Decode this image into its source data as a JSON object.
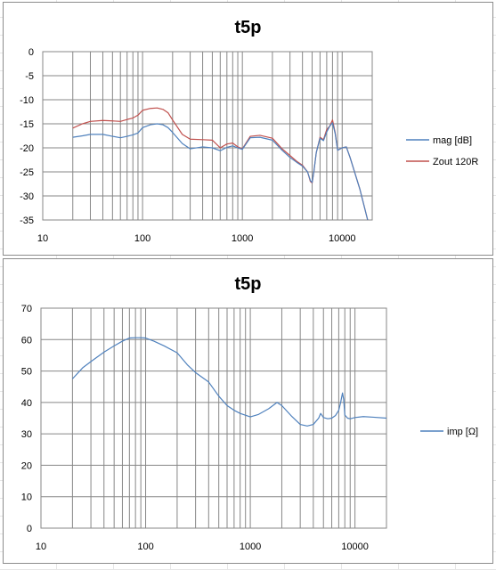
{
  "chart_data": [
    {
      "type": "line",
      "title": "t5p",
      "xscale": "log",
      "xlim": [
        10,
        20000
      ],
      "ylim": [
        -35,
        0
      ],
      "x_ticks": [
        10,
        100,
        1000,
        10000
      ],
      "x_tick_labels": [
        "10",
        "100",
        "1000",
        "10000"
      ],
      "y_ticks": [
        0,
        -5,
        -10,
        -15,
        -20,
        -25,
        -30,
        -35
      ],
      "y_tick_labels": [
        "0",
        "-5",
        "-10",
        "-15",
        "-20",
        "-25",
        "-30",
        "-35"
      ],
      "grid": true,
      "legend_position": "right",
      "series": [
        {
          "name": "mag [dB]",
          "color": "#4f81bd",
          "x": [
            20,
            25,
            30,
            40,
            50,
            60,
            70,
            80,
            90,
            100,
            120,
            140,
            160,
            180,
            200,
            250,
            300,
            400,
            500,
            600,
            700,
            800,
            900,
            1000,
            1200,
            1500,
            2000,
            2500,
            3000,
            3500,
            4000,
            4500,
            4800,
            5000,
            5200,
            5500,
            6000,
            6500,
            7000,
            7500,
            8000,
            8500,
            9000,
            10000,
            11000,
            12000,
            15000,
            18000
          ],
          "y": [
            -17.8,
            -17.5,
            -17.2,
            -17.2,
            -17.6,
            -17.9,
            -17.6,
            -17.3,
            -16.9,
            -15.8,
            -15.2,
            -15.0,
            -15.2,
            -15.8,
            -16.8,
            -19.1,
            -20.2,
            -19.8,
            -20.0,
            -20.6,
            -19.9,
            -19.6,
            -20.0,
            -20.3,
            -17.9,
            -17.8,
            -18.4,
            -20.5,
            -22.0,
            -23.0,
            -23.8,
            -25.0,
            -26.8,
            -27.2,
            -25.0,
            -21.0,
            -18.0,
            -18.5,
            -16.7,
            -15.5,
            -14.8,
            -17.0,
            -20.5,
            -20.0,
            -19.8,
            -22.0,
            -28.5,
            -35.0
          ]
        },
        {
          "name": "Zout 120R",
          "color": "#c0504d",
          "x": [
            20,
            25,
            30,
            40,
            50,
            60,
            70,
            80,
            90,
            100,
            120,
            140,
            160,
            180,
            200,
            250,
            300,
            400,
            500,
            600,
            700,
            800,
            900,
            1000,
            1200,
            1500,
            2000,
            2500,
            3000,
            3500,
            4000,
            4500,
            4800,
            5000,
            5200,
            5500,
            6000,
            6500,
            7000,
            7500,
            8000,
            8500,
            9000,
            10000,
            11000,
            12000,
            15000,
            18000
          ],
          "y": [
            -15.9,
            -15.0,
            -14.5,
            -14.3,
            -14.4,
            -14.5,
            -14.1,
            -13.8,
            -13.2,
            -12.2,
            -11.8,
            -11.7,
            -12.0,
            -12.7,
            -14.2,
            -17.2,
            -18.2,
            -18.3,
            -18.4,
            -20.0,
            -19.2,
            -19.0,
            -19.8,
            -20.2,
            -17.6,
            -17.4,
            -18.0,
            -20.2,
            -21.6,
            -22.8,
            -23.6,
            -25.0,
            -27.0,
            -27.3,
            -25.0,
            -21.0,
            -17.8,
            -18.3,
            -16.2,
            -15.5,
            -14.2,
            -16.8,
            -20.5,
            -20.0,
            -19.8,
            -22.0,
            -28.5,
            -35.0
          ]
        }
      ]
    },
    {
      "type": "line",
      "title": "t5p",
      "xscale": "log",
      "xlim": [
        10,
        20000
      ],
      "ylim": [
        0,
        70
      ],
      "x_ticks": [
        10,
        100,
        1000,
        10000
      ],
      "x_tick_labels": [
        "10",
        "100",
        "1000",
        "10000"
      ],
      "y_ticks": [
        0,
        10,
        20,
        30,
        40,
        50,
        60,
        70
      ],
      "y_tick_labels": [
        "0",
        "10",
        "20",
        "30",
        "40",
        "50",
        "60",
        "70"
      ],
      "grid": true,
      "legend_position": "right",
      "series": [
        {
          "name": "imp [Ω]",
          "color": "#4f81bd",
          "x": [
            20,
            25,
            30,
            40,
            50,
            60,
            70,
            80,
            90,
            100,
            120,
            150,
            200,
            250,
            300,
            400,
            500,
            600,
            700,
            800,
            1000,
            1200,
            1500,
            1800,
            2000,
            2500,
            3000,
            3500,
            4000,
            4500,
            4700,
            5000,
            5500,
            6000,
            6500,
            7000,
            7300,
            7600,
            7800,
            8000,
            8500,
            9000,
            10000,
            12000,
            15000,
            20000
          ],
          "y": [
            47.5,
            51.0,
            53.0,
            56.0,
            58.0,
            59.5,
            60.5,
            60.6,
            60.6,
            60.5,
            59.5,
            58.0,
            55.8,
            52.0,
            49.5,
            46.5,
            42.0,
            39.0,
            37.5,
            36.5,
            35.4,
            36.2,
            38.0,
            40.0,
            39.0,
            35.5,
            33.0,
            32.5,
            33.0,
            35.0,
            36.5,
            35.2,
            34.8,
            35.0,
            35.8,
            37.5,
            40.0,
            43.0,
            41.0,
            36.0,
            35.0,
            34.8,
            35.2,
            35.5,
            35.3,
            35.0
          ]
        }
      ]
    }
  ]
}
